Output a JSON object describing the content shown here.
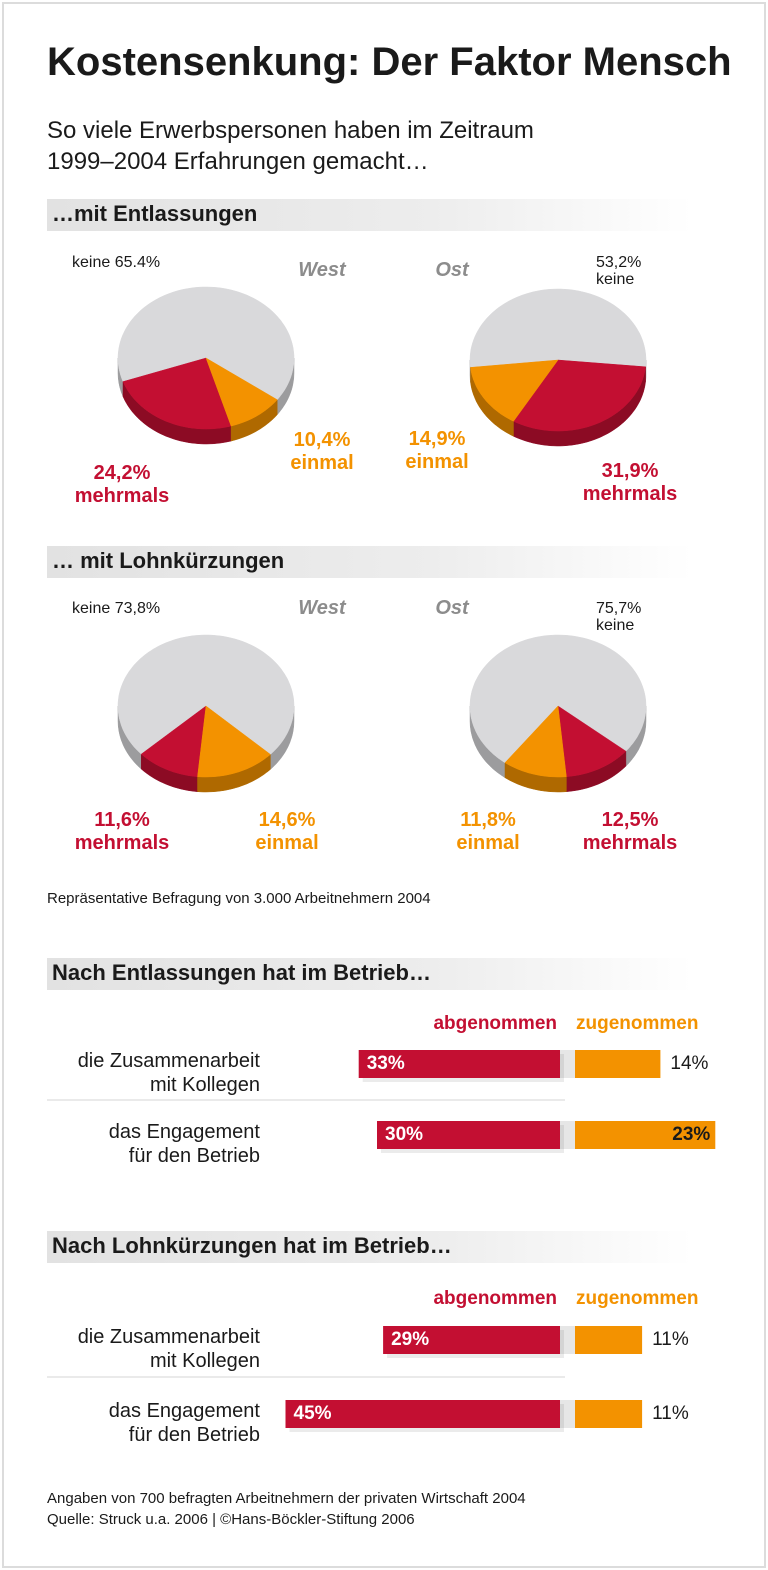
{
  "title": "Kostensenkung: Der Faktor Mensch",
  "subtitle": "So viele Erwerbspersonen haben im Zeitraum\n1999–2004 Erfahrungen gemacht…",
  "pie_headings": [
    "…mit Entlassungen",
    "… mit Lohnkürzungen"
  ],
  "survey_note": "Repräsentative Befragung von 3.000 Arbeitnehmern 2004",
  "chart_data": [
    {
      "type": "pie",
      "title": "West",
      "categories": [
        "keine",
        "mehrmals",
        "einmal"
      ],
      "values": [
        65.4,
        24.2,
        10.4
      ],
      "value_labels": [
        "65.4%",
        "24,2%",
        "10,4%"
      ],
      "colors": [
        "#d9d9db",
        "#c30f32",
        "#f39200"
      ]
    },
    {
      "type": "pie",
      "title": "Ost",
      "categories": [
        "keine",
        "mehrmals",
        "einmal"
      ],
      "values": [
        53.2,
        31.9,
        14.9
      ],
      "value_labels": [
        "53,2%",
        "31,9%",
        "14,9%"
      ],
      "colors": [
        "#d9d9db",
        "#c30f32",
        "#f39200"
      ]
    },
    {
      "type": "pie",
      "title": "West",
      "categories": [
        "keine",
        "mehrmals",
        "einmal"
      ],
      "values": [
        73.8,
        11.6,
        14.6
      ],
      "value_labels": [
        "73,8%",
        "11,6%",
        "14,6%"
      ],
      "colors": [
        "#d9d9db",
        "#c30f32",
        "#f39200"
      ]
    },
    {
      "type": "pie",
      "title": "Ost",
      "categories": [
        "keine",
        "mehrmals",
        "einmal"
      ],
      "values": [
        75.7,
        12.5,
        11.8
      ],
      "value_labels": [
        "75,7%",
        "12,5%",
        "11,8%"
      ],
      "colors": [
        "#d9d9db",
        "#c30f32",
        "#f39200"
      ]
    },
    {
      "type": "bar",
      "title": "Nach Entlassungen hat im Betrieb…",
      "categories": [
        "die Zusammenarbeit\nmit Kollegen",
        "das Engagement\nfür den Betrieb"
      ],
      "series": [
        {
          "name": "abgenommen",
          "color": "#c30f32",
          "values": [
            33,
            30
          ],
          "value_labels": [
            "33%",
            "30%"
          ]
        },
        {
          "name": "zugenommen",
          "color": "#f39200",
          "values": [
            14,
            23
          ],
          "value_labels": [
            "14%",
            "23%"
          ]
        }
      ]
    },
    {
      "type": "bar",
      "title": "Nach Lohnkürzungen hat im Betrieb…",
      "categories": [
        "die Zusammenarbeit\nmit Kollegen",
        "das Engagement\nfür den Betrieb"
      ],
      "series": [
        {
          "name": "abgenommen",
          "color": "#c30f32",
          "values": [
            29,
            45
          ],
          "value_labels": [
            "29%",
            "45%"
          ]
        },
        {
          "name": "zugenommen",
          "color": "#f39200",
          "values": [
            11,
            11
          ],
          "value_labels": [
            "11%",
            "11%"
          ]
        }
      ]
    }
  ],
  "footer": [
    "Angaben von 700 befragten Arbeitnehmern der privaten Wirtschaft 2004",
    "Quelle: Struck u.a. 2006 | ©Hans-Böckler-Stiftung 2006"
  ]
}
